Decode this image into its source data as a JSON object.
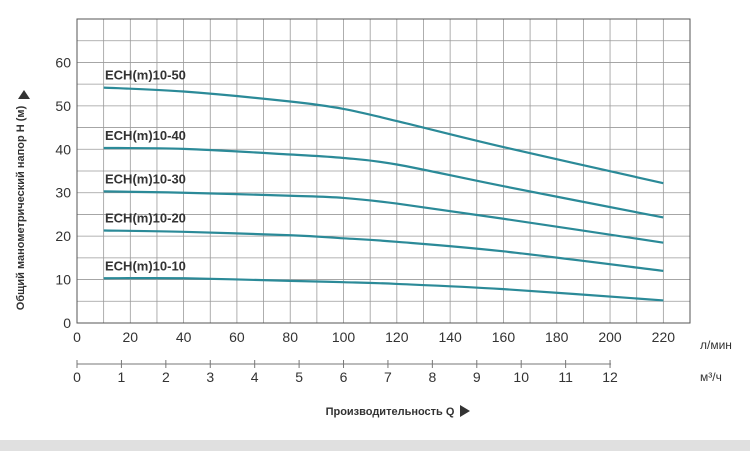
{
  "chart_data": {
    "type": "line",
    "xlabel": "Производительность Q",
    "ylabel": "Общий манометрический напор H (м)",
    "x_unit_primary": "л/мин",
    "x_unit_secondary": "м³/ч",
    "xlim": [
      0,
      230
    ],
    "ylim": [
      0,
      70
    ],
    "x_ticks_primary": [
      0,
      20,
      40,
      60,
      80,
      100,
      120,
      140,
      160,
      180,
      200,
      220
    ],
    "x_ticks_secondary": [
      0,
      1,
      2,
      3,
      4,
      5,
      6,
      7,
      8,
      9,
      10,
      11,
      12
    ],
    "y_ticks": [
      0,
      10,
      20,
      30,
      40,
      50,
      60
    ],
    "grid": true,
    "color": "#2b8a98",
    "series": [
      {
        "name": "ECH(m)10-50",
        "x": [
          10,
          40,
          80,
          100,
          120,
          160,
          220
        ],
        "y": [
          54.2,
          53.3,
          51.0,
          49.3,
          46.5,
          40.5,
          32.2
        ]
      },
      {
        "name": "ECH(m)10-40",
        "x": [
          10,
          40,
          80,
          100,
          120,
          160,
          220
        ],
        "y": [
          40.3,
          40.1,
          38.8,
          38.0,
          36.5,
          31.5,
          24.3
        ]
      },
      {
        "name": "ECH(m)10-30",
        "x": [
          10,
          40,
          80,
          100,
          120,
          160,
          220
        ],
        "y": [
          30.3,
          30.0,
          29.3,
          28.8,
          27.5,
          24.0,
          18.5
        ]
      },
      {
        "name": "ECH(m)10-20",
        "x": [
          10,
          40,
          80,
          100,
          120,
          160,
          220
        ],
        "y": [
          21.3,
          21.0,
          20.2,
          19.5,
          18.7,
          16.5,
          12.0
        ]
      },
      {
        "name": "ECH(m)10-10",
        "x": [
          10,
          40,
          80,
          100,
          120,
          160,
          220
        ],
        "y": [
          10.3,
          10.3,
          9.7,
          9.4,
          9.0,
          7.8,
          5.2
        ]
      }
    ]
  }
}
